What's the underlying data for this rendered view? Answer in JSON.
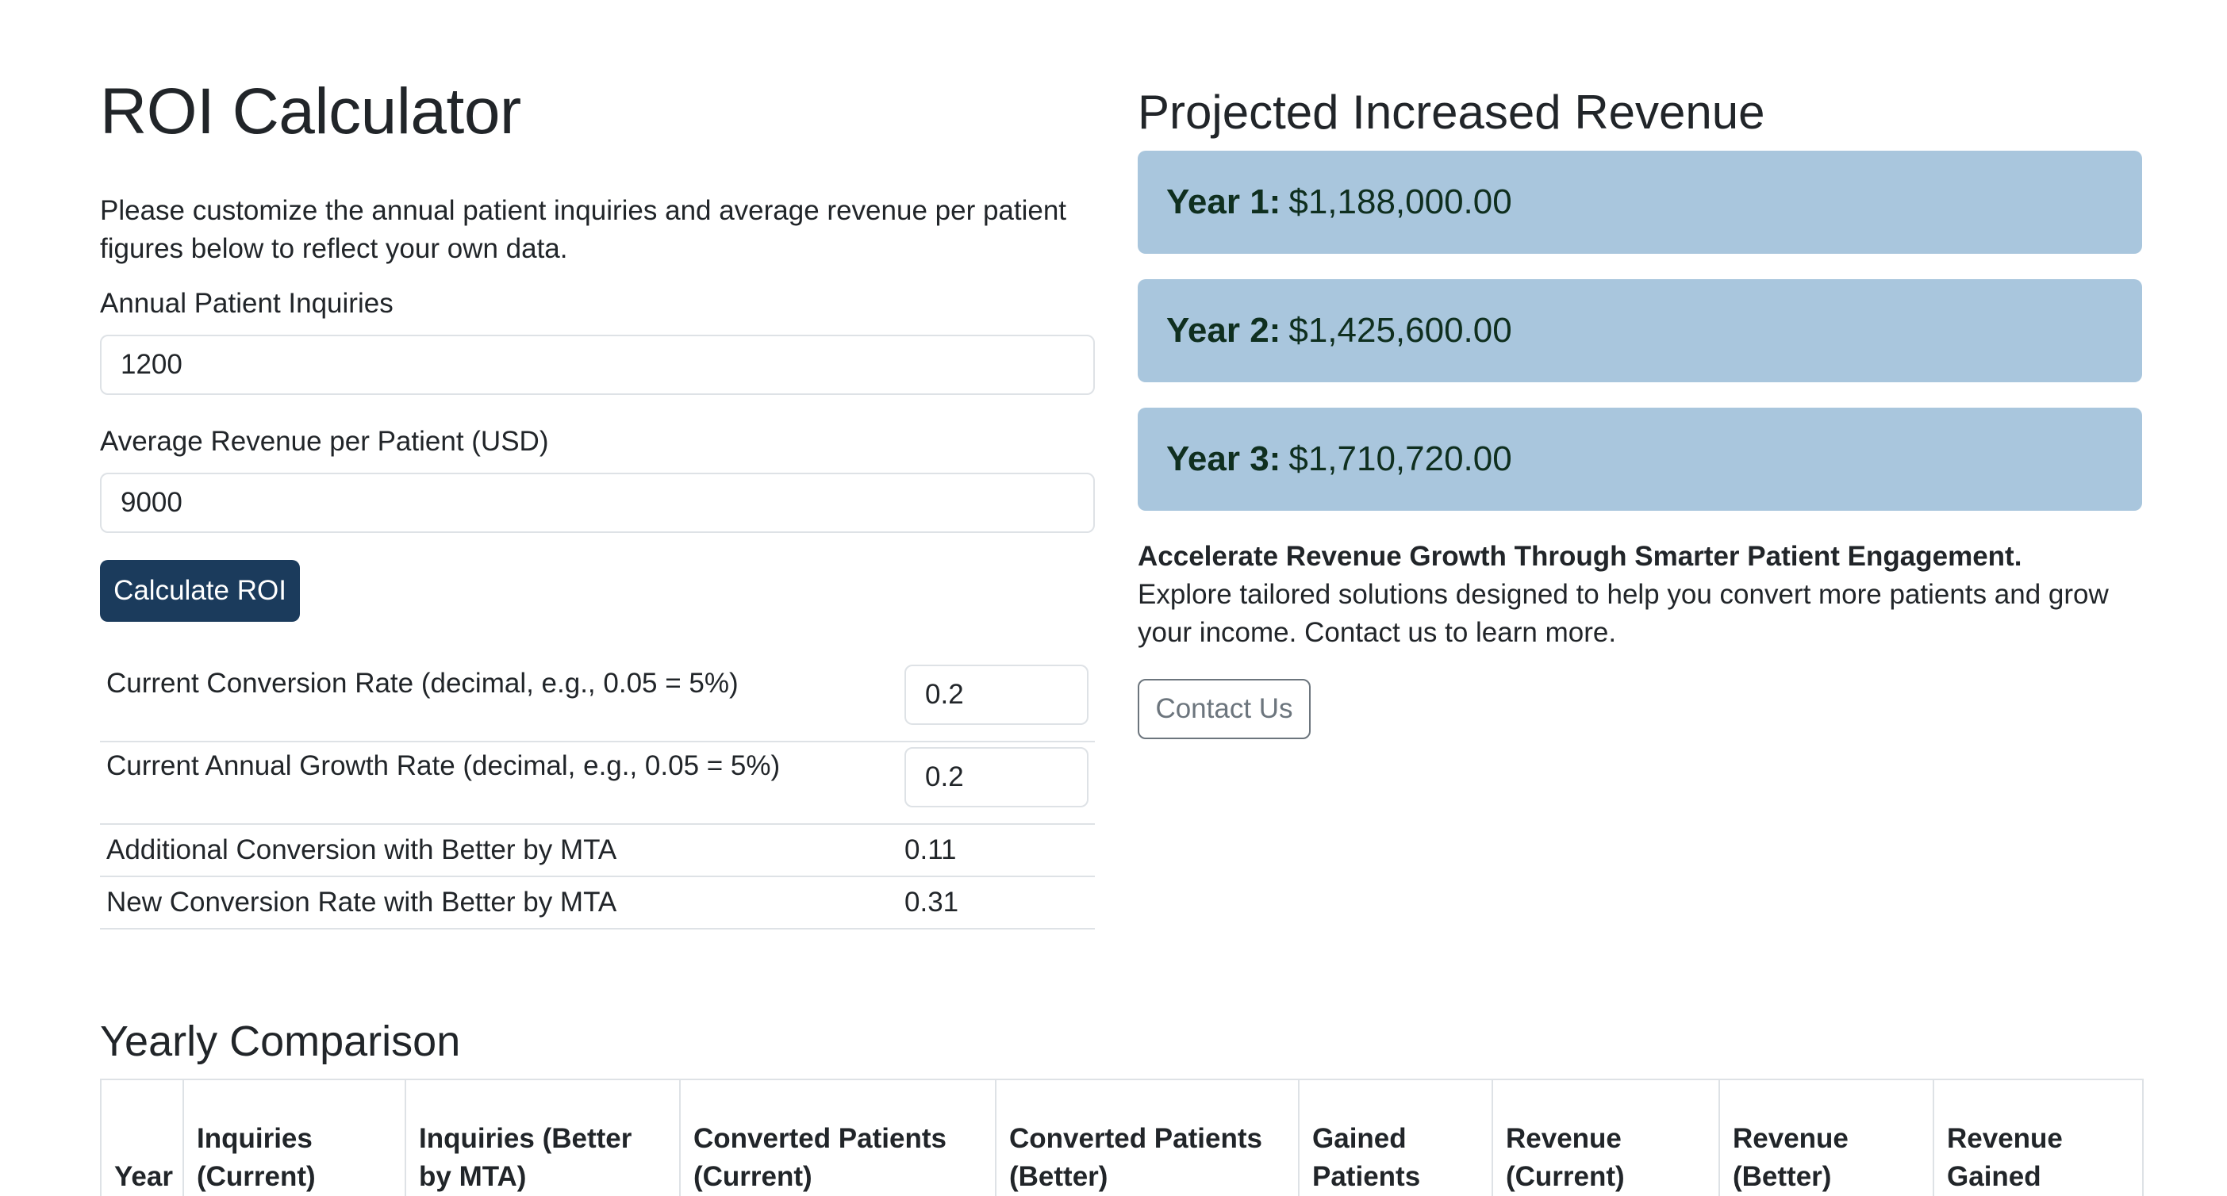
{
  "page": {
    "title": "ROI Calculator",
    "intro": "Please customize the annual patient inquiries and average revenue per patient figures below to reflect your own data."
  },
  "form": {
    "inquiries_label": "Annual Patient Inquiries",
    "inquiries_value": "1200",
    "revenue_label": "Average Revenue per Patient (USD)",
    "revenue_value": "9000",
    "calculate_label": "Calculate ROI"
  },
  "params": {
    "conversion_label": "Current Conversion Rate (decimal, e.g., 0.05 = 5%)",
    "conversion_value": "0.2",
    "growth_label": "Current Annual Growth Rate (decimal, e.g., 0.05 = 5%)",
    "growth_value": "0.2",
    "additional_label": "Additional Conversion with Better by MTA",
    "additional_value": "0.11",
    "new_rate_label": "New Conversion Rate with Better by MTA",
    "new_rate_value": "0.31"
  },
  "projection": {
    "title": "Projected Increased Revenue",
    "years": [
      {
        "label": "Year 1:",
        "value": "$1,188,000.00"
      },
      {
        "label": "Year 2:",
        "value": "$1,425,600.00"
      },
      {
        "label": "Year 3:",
        "value": "$1,710,720.00"
      }
    ]
  },
  "promo": {
    "title": "Accelerate Revenue Growth Through Smarter Patient Engagement.",
    "text": "Explore tailored solutions designed to help you convert more patients and grow your income. Contact us to learn more.",
    "contact_label": "Contact Us"
  },
  "comparison": {
    "title": "Yearly Comparison",
    "headers": [
      "Year",
      "Inquiries (Current)",
      "Inquiries (Better by MTA)",
      "Converted Patients (Current)",
      "Converted Patients (Better)",
      "Gained Patients",
      "Revenue (Current)",
      "Revenue (Better)",
      "Revenue Gained"
    ]
  },
  "colors": {
    "primary_button": "#1b3b5c",
    "card_background": "#a9c6dd",
    "card_text": "#0f2f1f"
  }
}
